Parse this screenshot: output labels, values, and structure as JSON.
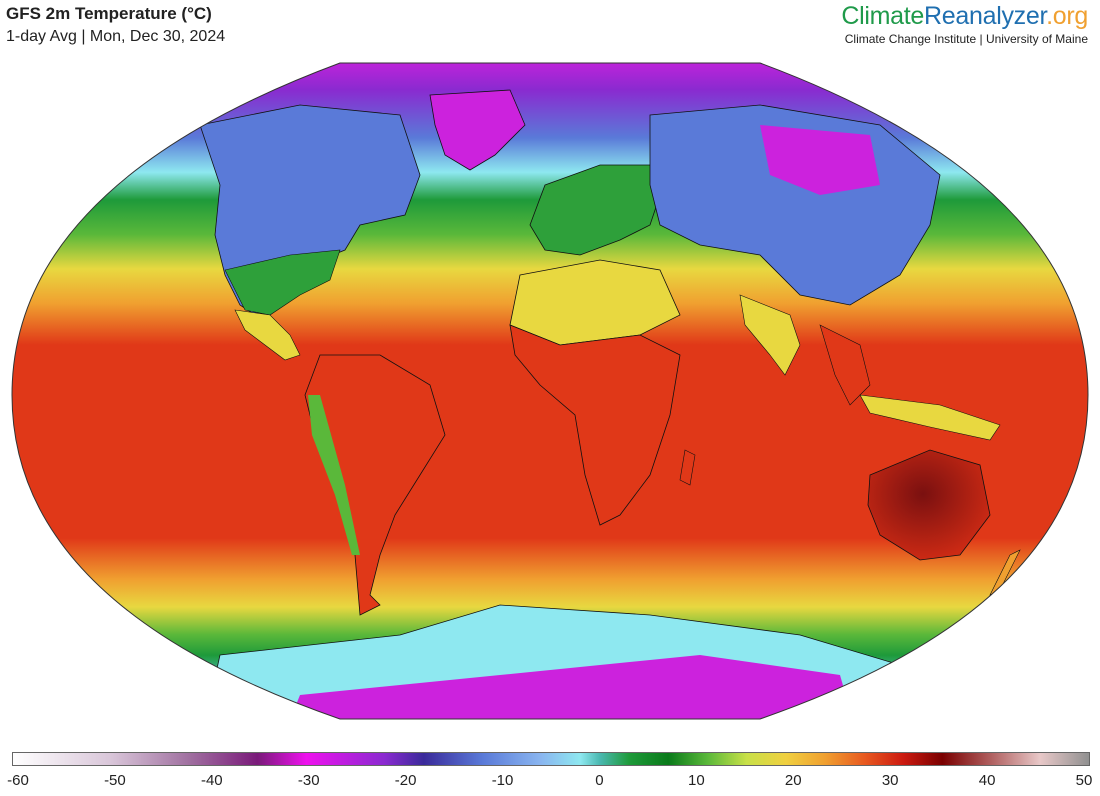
{
  "header": {
    "title": "GFS 2m Temperature (°C)",
    "subtitle": "1-day Avg | Mon, Dec 30, 2024"
  },
  "brand": {
    "part1": "Climate",
    "part2": "Reanalyzer",
    "part3": ".org",
    "institution": "Climate Change Institute | University of Maine"
  },
  "colorbar": {
    "ticks": [
      "-60",
      "-50",
      "-40",
      "-30",
      "-20",
      "-10",
      "0",
      "10",
      "20",
      "30",
      "40",
      "50"
    ],
    "range": [
      -60,
      50
    ],
    "stops": [
      [
        -60,
        "#ffffff"
      ],
      [
        -50,
        "#d9c6d9"
      ],
      [
        -42,
        "#a070a0"
      ],
      [
        -35,
        "#7a1a7a"
      ],
      [
        -30,
        "#ee11ee"
      ],
      [
        -22,
        "#8a2ad0"
      ],
      [
        -18,
        "#3a2a9a"
      ],
      [
        -12,
        "#5a7ad8"
      ],
      [
        -6,
        "#8ab6f0"
      ],
      [
        -2,
        "#8ee8f0"
      ],
      [
        0,
        "#4ab8b0"
      ],
      [
        3,
        "#1e9a3a"
      ],
      [
        7,
        "#0a7a1a"
      ],
      [
        11,
        "#5ab83a"
      ],
      [
        15,
        "#c8e048"
      ],
      [
        19,
        "#f0d040"
      ],
      [
        23,
        "#f0a030"
      ],
      [
        27,
        "#e85a20"
      ],
      [
        31,
        "#cc1a10"
      ],
      [
        35,
        "#7a0000"
      ],
      [
        40,
        "#b06060"
      ],
      [
        45,
        "#e8c8c8"
      ],
      [
        50,
        "#909090"
      ]
    ]
  },
  "map": {
    "projection": "Winkel Tripel",
    "variable": "2m temperature",
    "colors": {
      "polar": "#cc22dd",
      "cold": "#5a7ad8",
      "cool": "#8ee8f0",
      "temperate": "#2ea03a",
      "warm": "#e8d840",
      "hot": "#e03818",
      "veryhot": "#9a1010"
    }
  }
}
